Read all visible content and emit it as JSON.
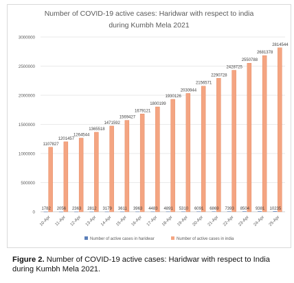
{
  "chart_data": {
    "type": "bar",
    "title_lines": [
      "Number of COVID-19 active cases: Haridwar with respect to india",
      "during Kumbh Mela 2021"
    ],
    "categories": [
      "10-Apr",
      "11-Apr",
      "12-Apr",
      "13-Apr",
      "14-Apr",
      "15-Apr",
      "16-Apr",
      "17-Apr",
      "18-Apr",
      "19-Apr",
      "20-Apr",
      "21-Apr",
      "22-Apr",
      "23-Apr",
      "24-Apr",
      "25-Apr"
    ],
    "series": [
      {
        "name": "Number of active cases in haridwar",
        "color": "#5b7fb9",
        "values": [
          1782,
          2056,
          2363,
          2812,
          3179,
          3611,
          3963,
          4483,
          4891,
          5310,
          6091,
          6869,
          7393,
          8504,
          9381,
          10235
        ],
        "labels": [
          "1782",
          "2056",
          "2363",
          "2812",
          "3179",
          "3611",
          "3963",
          "4483",
          "4891",
          "5310",
          "6091",
          "6869",
          "7393",
          "8504",
          "9381",
          "10235"
        ]
      },
      {
        "name": "Number of active cases in india",
        "color": "#f4a582",
        "values": [
          1107827,
          1201457,
          1264544,
          1365518,
          1471592,
          1569427,
          1679121,
          1800199,
          1930126,
          2030944,
          2156571,
          2290728,
          2428725,
          2550788,
          2681378,
          2814544
        ],
        "labels": [
          "1107827",
          "1201457",
          "1264544",
          "1365518",
          "1471592",
          "1569427",
          "1679121",
          "1800199",
          "1930126",
          "2030944",
          "2156571",
          "2290728",
          "2428725",
          "2550788",
          "2681378",
          "2814544"
        ]
      }
    ],
    "ylim": [
      0,
      3000000
    ],
    "yticks": [
      0,
      500000,
      1000000,
      1500000,
      2000000,
      2500000,
      3000000
    ],
    "ytick_labels": [
      "0",
      "500000",
      "1000000",
      "1500000",
      "2000000",
      "2500000",
      "3000000"
    ],
    "grid": true,
    "legend_position": "bottom"
  },
  "caption": {
    "label": "Figure 2.",
    "text": " Number of COVID-19 active cases: Haridwar with respect to India during Kumbh Mela 2021."
  }
}
